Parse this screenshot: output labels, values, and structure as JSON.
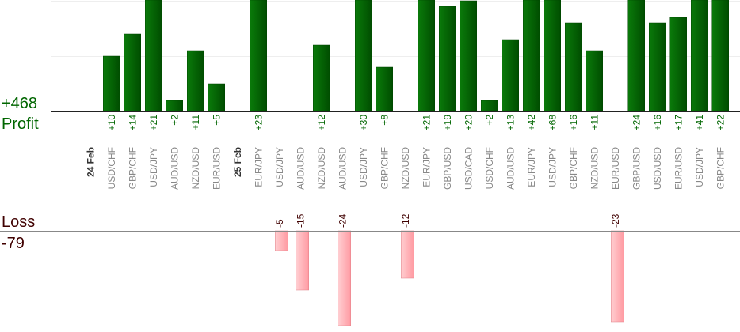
{
  "chart_data": {
    "type": "bar",
    "profit": {
      "heading": "Profit",
      "total": "+468",
      "color": "#006600",
      "ylim": [
        0,
        20
      ]
    },
    "loss": {
      "heading": "Loss",
      "total": "-79",
      "color": "#400000",
      "ylim": [
        0,
        23
      ]
    },
    "groups": [
      {
        "date": "24 Feb",
        "bars": [
          {
            "pair": "USD/CHF",
            "value": 10
          },
          {
            "pair": "GBP/CHF",
            "value": 14
          },
          {
            "pair": "USD/JPY",
            "value": 21
          },
          {
            "pair": "AUD/USD",
            "value": 2
          },
          {
            "pair": "NZD/USD",
            "value": 11
          },
          {
            "pair": "EUR/USD",
            "value": 5
          }
        ]
      },
      {
        "date": "25 Feb",
        "bars": [
          {
            "pair": "EUR/JPY",
            "value": 23
          },
          {
            "pair": "USD/JPY",
            "value": -5
          },
          {
            "pair": "AUD/USD",
            "value": -15
          },
          {
            "pair": "NZD/USD",
            "value": 12
          },
          {
            "pair": "AUD/USD",
            "value": -24
          },
          {
            "pair": "USD/JPY",
            "value": 30
          },
          {
            "pair": "GBP/CHF",
            "value": 8
          },
          {
            "pair": "NZD/USD",
            "value": -12
          },
          {
            "pair": "EUR/JPY",
            "value": 21
          },
          {
            "pair": "GBP/USD",
            "value": 19
          },
          {
            "pair": "USD/CAD",
            "value": 20
          },
          {
            "pair": "USD/CHF",
            "value": 2
          },
          {
            "pair": "AUD/USD",
            "value": 13
          },
          {
            "pair": "EUR/JPY",
            "value": 42
          },
          {
            "pair": "USD/JPY",
            "value": 68
          },
          {
            "pair": "GBP/CHF",
            "value": 16
          },
          {
            "pair": "NZD/USD",
            "value": 11
          },
          {
            "pair": "EUR/USD",
            "value": -23
          },
          {
            "pair": "GBP/USD",
            "value": 24
          },
          {
            "pair": "USD/USD",
            "value": 16
          },
          {
            "pair": "EUR/USD",
            "value": 17
          },
          {
            "pair": "USD/JPY",
            "value": 41
          },
          {
            "pair": "GBP/CHF",
            "value": 22
          }
        ]
      }
    ]
  }
}
